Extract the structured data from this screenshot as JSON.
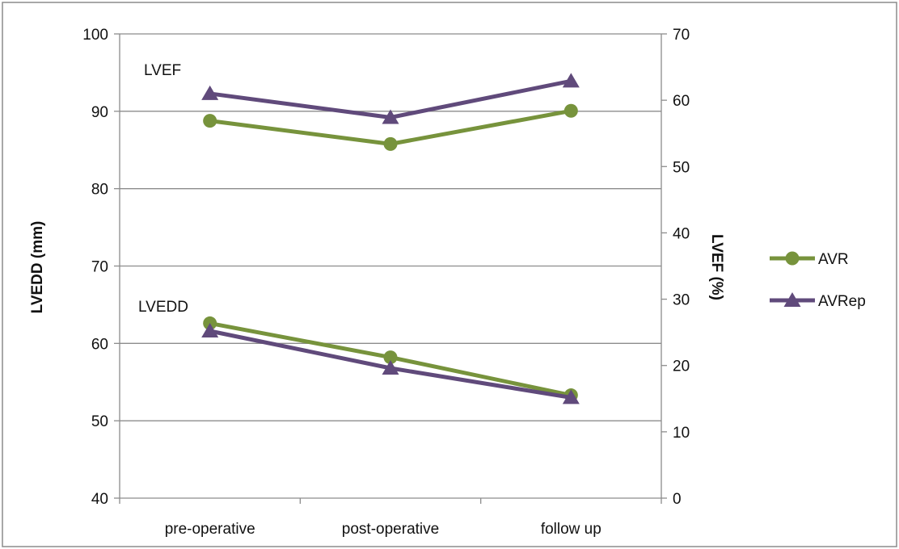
{
  "chart_data": {
    "type": "line",
    "categories": [
      "pre-operative",
      "post-operative",
      "follow up"
    ],
    "y_left": {
      "label": "LVEDD (mm)",
      "range": [
        40,
        100
      ],
      "ticks": [
        "40",
        "50",
        "60",
        "70",
        "80",
        "90",
        "100"
      ]
    },
    "y_right": {
      "label": "LVEF (%)",
      "range": [
        0,
        70
      ],
      "ticks": [
        "0",
        "10",
        "20",
        "30",
        "40",
        "50",
        "60",
        "70"
      ]
    },
    "gridlines": "horizontal",
    "legend_position": "right",
    "annotations": [
      "LVEF",
      "LVEDD"
    ],
    "colors": {
      "AVR": "#77933c",
      "AVRep": "#604a7b"
    },
    "series": [
      {
        "name": "AVR",
        "marker": "circle",
        "metric": "LVEDD",
        "axis": "left",
        "values": [
          62.6,
          58.2,
          53.3
        ]
      },
      {
        "name": "AVRep",
        "marker": "triangle",
        "metric": "LVEDD",
        "axis": "left",
        "values": [
          61.6,
          56.8,
          53.0
        ]
      },
      {
        "name": "AVR",
        "marker": "circle",
        "metric": "LVEF",
        "axis": "right",
        "values": [
          56.9,
          53.4,
          58.4
        ]
      },
      {
        "name": "AVRep",
        "marker": "triangle",
        "metric": "LVEF",
        "axis": "right",
        "values": [
          61.0,
          57.4,
          62.9
        ]
      }
    ],
    "legend": [
      "AVR",
      "AVRep"
    ]
  }
}
